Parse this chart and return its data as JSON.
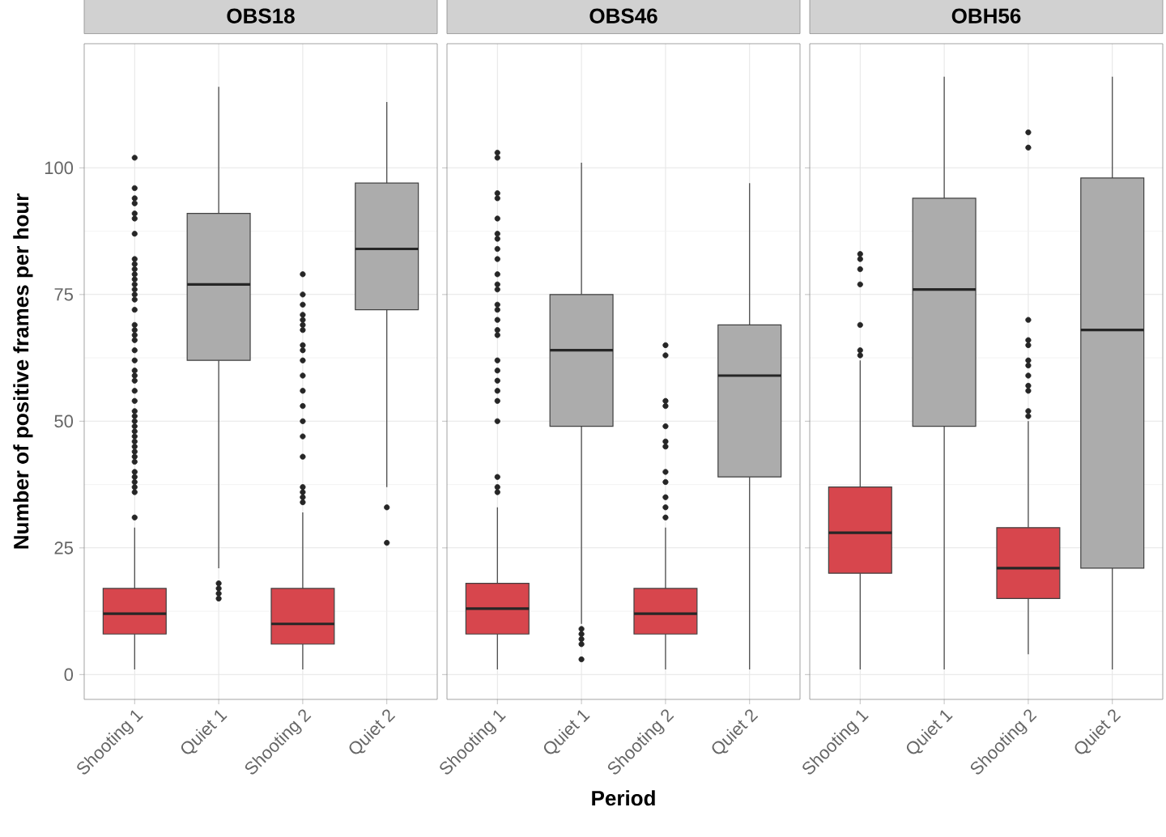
{
  "chart_data": [
    {
      "type": "box",
      "title": "OBS18",
      "ylabel": "Number of positive frames per hour",
      "categories": [
        "Shooting 1",
        "Quiet 1",
        "Shooting 2",
        "Quiet 2"
      ],
      "colors": [
        "#d7464d",
        "#acacac",
        "#d7464d",
        "#acacac"
      ],
      "boxes": [
        {
          "low": 1,
          "q1": 8,
          "median": 12,
          "q3": 17,
          "high": 29,
          "outliers": [
            31,
            36,
            37,
            38,
            39,
            40,
            42,
            43,
            44,
            45,
            46,
            47,
            48,
            49,
            50,
            51,
            52,
            54,
            56,
            58,
            59,
            60,
            62,
            64,
            66,
            67,
            68,
            69,
            72,
            74,
            75,
            76,
            77,
            78,
            79,
            80,
            81,
            82,
            87,
            90,
            91,
            93,
            94,
            96,
            102
          ]
        },
        {
          "low": 21,
          "q1": 62,
          "median": 77,
          "q3": 91,
          "high": 116,
          "outliers": [
            15,
            16,
            17,
            18
          ]
        },
        {
          "low": 1,
          "q1": 6,
          "median": 10,
          "q3": 17,
          "high": 32,
          "outliers": [
            34,
            35,
            36,
            37,
            43,
            47,
            50,
            53,
            56,
            59,
            62,
            64,
            65,
            68,
            69,
            70,
            71,
            73,
            75,
            79
          ]
        },
        {
          "low": 37,
          "q1": 72,
          "median": 84,
          "q3": 97,
          "high": 113,
          "outliers": [
            26,
            33
          ]
        }
      ],
      "ylim": [
        -4.9,
        124.5
      ],
      "yticks": [
        0,
        25,
        50,
        75,
        100
      ],
      "grid": true
    },
    {
      "type": "box",
      "title": "OBS46",
      "xlabel": "Period",
      "categories": [
        "Shooting 1",
        "Quiet 1",
        "Shooting 2",
        "Quiet 2"
      ],
      "colors": [
        "#d7464d",
        "#acacac",
        "#d7464d",
        "#acacac"
      ],
      "boxes": [
        {
          "low": 1,
          "q1": 8,
          "median": 13,
          "q3": 18,
          "high": 33,
          "outliers": [
            36,
            37,
            39,
            50,
            54,
            56,
            58,
            60,
            62,
            67,
            68,
            70,
            72,
            73,
            76,
            77,
            79,
            82,
            84,
            86,
            87,
            90,
            94,
            95,
            102,
            103
          ]
        },
        {
          "low": 10,
          "q1": 49,
          "median": 64,
          "q3": 75,
          "high": 101,
          "outliers": [
            3,
            6,
            7,
            8,
            9
          ]
        },
        {
          "low": 1,
          "q1": 8,
          "median": 12,
          "q3": 17,
          "high": 29,
          "outliers": [
            31,
            33,
            35,
            38,
            40,
            45,
            46,
            49,
            53,
            54,
            63,
            65
          ]
        },
        {
          "low": 1,
          "q1": 39,
          "median": 59,
          "q3": 69,
          "high": 97
        }
      ],
      "ylim": [
        -4.9,
        124.5
      ],
      "yticks": [
        0,
        25,
        50,
        75,
        100
      ],
      "grid": true,
      "tick_labels": "x"
    },
    {
      "type": "box",
      "title": "OBH56",
      "categories": [
        "Shooting 1",
        "Quiet 1",
        "Shooting 2",
        "Quiet 2"
      ],
      "colors": [
        "#d7464d",
        "#acacac",
        "#d7464d",
        "#acacac"
      ],
      "boxes": [
        {
          "low": 1,
          "q1": 20,
          "median": 28,
          "q3": 37,
          "high": 62,
          "outliers": [
            63,
            64,
            69,
            77,
            80,
            82,
            83
          ]
        },
        {
          "low": 1,
          "q1": 49,
          "median": 76,
          "q3": 94,
          "high": 118
        },
        {
          "low": 4,
          "q1": 15,
          "median": 21,
          "q3": 29,
          "high": 50,
          "outliers": [
            51,
            52,
            56,
            57,
            59,
            61,
            62,
            65,
            66,
            70,
            104,
            107
          ]
        },
        {
          "low": 1,
          "q1": 21,
          "median": 68,
          "q3": 98,
          "high": 118
        }
      ],
      "ylim": [
        -4.9,
        124.5
      ],
      "yticks": [
        0,
        25,
        50,
        75,
        100
      ],
      "grid": true,
      "tick_labels": "x"
    }
  ]
}
